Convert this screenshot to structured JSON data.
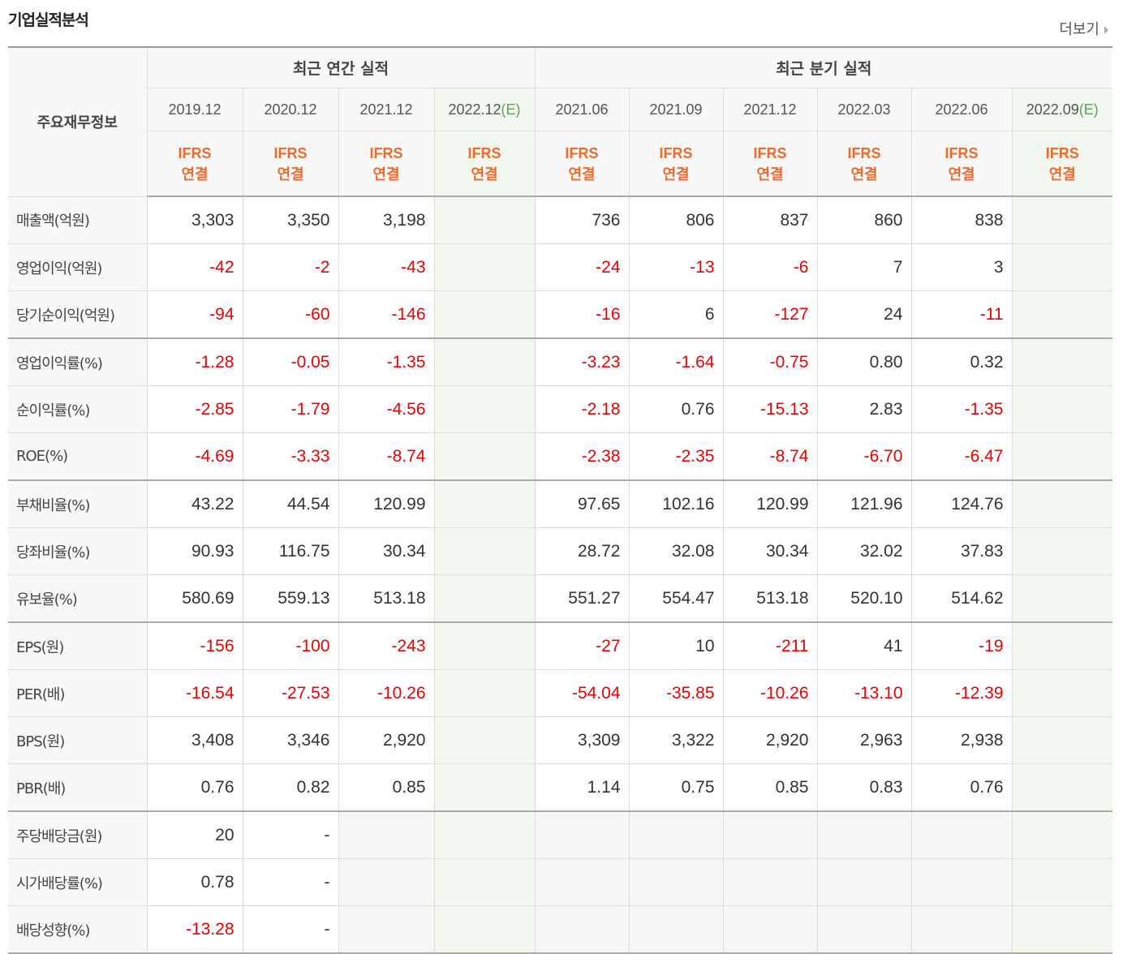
{
  "header": {
    "title": "기업실적분석",
    "more": "더보기"
  },
  "table": {
    "row_header": "주요재무정보",
    "groups": [
      {
        "label": "최근 연간 실적",
        "columns": [
          {
            "date": "2019.12",
            "standard": "IFRS",
            "scope": "연결"
          },
          {
            "date": "2020.12",
            "standard": "IFRS",
            "scope": "연결"
          },
          {
            "date": "2021.12",
            "standard": "IFRS",
            "scope": "연결"
          },
          {
            "date": "2022.12",
            "estimate": "(E)",
            "standard": "IFRS",
            "scope": "연결"
          }
        ]
      },
      {
        "label": "최근 분기 실적",
        "columns": [
          {
            "date": "2021.06",
            "standard": "IFRS",
            "scope": "연결"
          },
          {
            "date": "2021.09",
            "standard": "IFRS",
            "scope": "연결"
          },
          {
            "date": "2021.12",
            "standard": "IFRS",
            "scope": "연결"
          },
          {
            "date": "2022.03",
            "standard": "IFRS",
            "scope": "연결"
          },
          {
            "date": "2022.06",
            "standard": "IFRS",
            "scope": "연결"
          },
          {
            "date": "2022.09",
            "estimate": "(E)",
            "standard": "IFRS",
            "scope": "연결"
          }
        ]
      }
    ],
    "row_groups": [
      {
        "rows": [
          {
            "label": "매출액(억원)",
            "cells": [
              "3,303",
              "3,350",
              "3,198",
              null,
              "736",
              "806",
              "837",
              "860",
              "838",
              null
            ]
          },
          {
            "label": "영업이익(억원)",
            "cells": [
              "-42",
              "-2",
              "-43",
              null,
              "-24",
              "-13",
              "-6",
              "7",
              "3",
              null
            ]
          },
          {
            "label": "당기순이익(억원)",
            "cells": [
              "-94",
              "-60",
              "-146",
              null,
              "-16",
              "6",
              "-127",
              "24",
              "-11",
              null
            ]
          }
        ]
      },
      {
        "rows": [
          {
            "label": "영업이익률(%)",
            "cells": [
              "-1.28",
              "-0.05",
              "-1.35",
              null,
              "-3.23",
              "-1.64",
              "-0.75",
              "0.80",
              "0.32",
              null
            ]
          },
          {
            "label": "순이익률(%)",
            "cells": [
              "-2.85",
              "-1.79",
              "-4.56",
              null,
              "-2.18",
              "0.76",
              "-15.13",
              "2.83",
              "-1.35",
              null
            ]
          },
          {
            "label": "ROE(%)",
            "cells": [
              "-4.69",
              "-3.33",
              "-8.74",
              null,
              "-2.38",
              "-2.35",
              "-8.74",
              "-6.70",
              "-6.47",
              null
            ]
          }
        ]
      },
      {
        "rows": [
          {
            "label": "부채비율(%)",
            "cells": [
              "43.22",
              "44.54",
              "120.99",
              null,
              "97.65",
              "102.16",
              "120.99",
              "121.96",
              "124.76",
              null
            ]
          },
          {
            "label": "당좌비율(%)",
            "cells": [
              "90.93",
              "116.75",
              "30.34",
              null,
              "28.72",
              "32.08",
              "30.34",
              "32.02",
              "37.83",
              null
            ]
          },
          {
            "label": "유보율(%)",
            "cells": [
              "580.69",
              "559.13",
              "513.18",
              null,
              "551.27",
              "554.47",
              "513.18",
              "520.10",
              "514.62",
              null
            ]
          }
        ]
      },
      {
        "rows": [
          {
            "label": "EPS(원)",
            "cells": [
              "-156",
              "-100",
              "-243",
              null,
              "-27",
              "10",
              "-211",
              "41",
              "-19",
              null
            ]
          },
          {
            "label": "PER(배)",
            "cells": [
              "-16.54",
              "-27.53",
              "-10.26",
              null,
              "-54.04",
              "-35.85",
              "-10.26",
              "-13.10",
              "-12.39",
              null
            ]
          },
          {
            "label": "BPS(원)",
            "cells": [
              "3,408",
              "3,346",
              "2,920",
              null,
              "3,309",
              "3,322",
              "2,920",
              "2,963",
              "2,938",
              null
            ]
          },
          {
            "label": "PBR(배)",
            "cells": [
              "0.76",
              "0.82",
              "0.85",
              null,
              "1.14",
              "0.75",
              "0.85",
              "0.83",
              "0.76",
              null
            ]
          }
        ]
      },
      {
        "rows": [
          {
            "label": "주당배당금(원)",
            "cells": [
              "20",
              "-",
              null,
              null,
              null,
              null,
              null,
              null,
              null,
              null
            ]
          },
          {
            "label": "시가배당률(%)",
            "cells": [
              "0.78",
              "-",
              null,
              null,
              null,
              null,
              null,
              null,
              null,
              null
            ]
          },
          {
            "label": "배당성향(%)",
            "cells": [
              "-13.28",
              "-",
              null,
              null,
              null,
              null,
              null,
              null,
              null,
              null
            ]
          }
        ]
      }
    ]
  }
}
